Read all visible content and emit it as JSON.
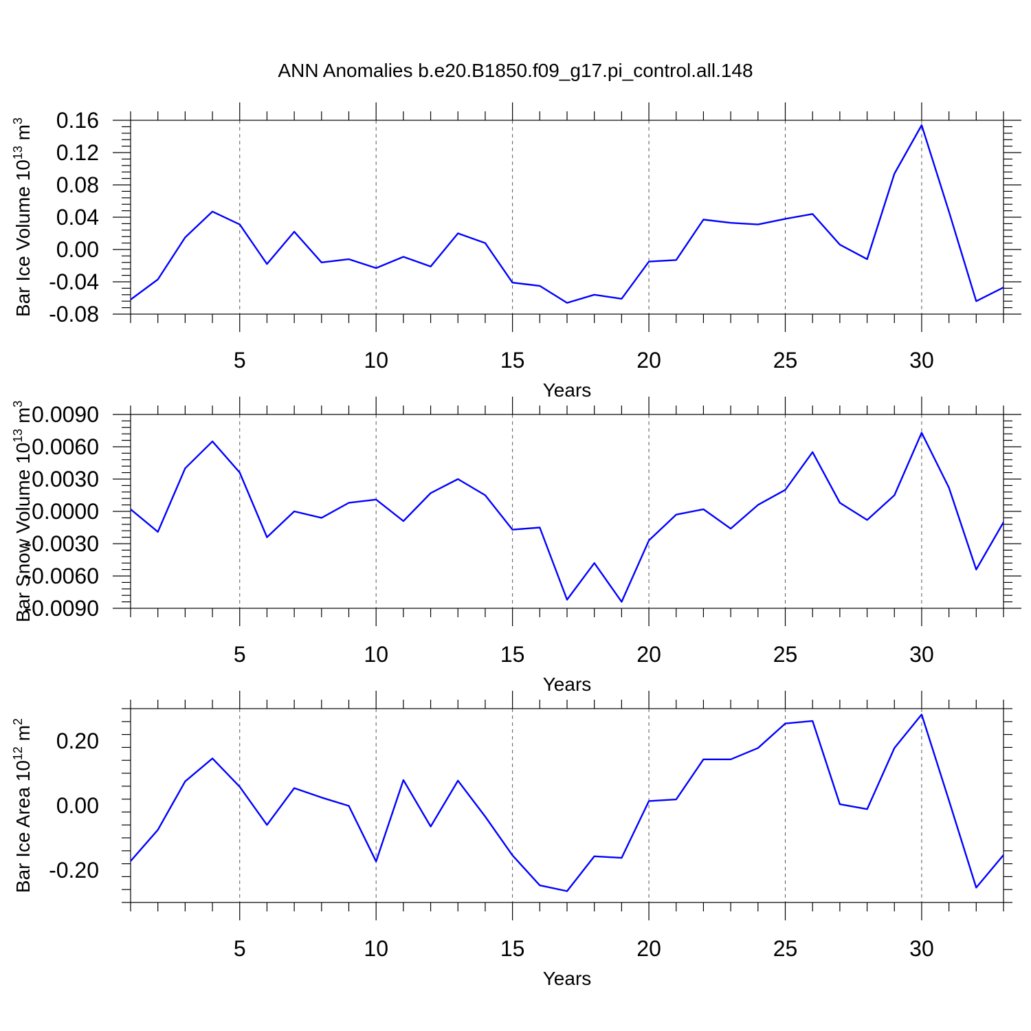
{
  "title": "ANN Anomalies b.e20.B1850.f09_g17.pi_control.all.148",
  "colors": {
    "line": "#0000ff",
    "axis": "#000000",
    "grid": "#555555"
  },
  "chart_data": [
    {
      "type": "line",
      "xlabel": "Years",
      "ylabel": "Bar Ice Volume 10",
      "ylabel_exp": "13",
      "ylabel_unit": " m",
      "ylabel_unit_exp": "3",
      "xlim": [
        1,
        33
      ],
      "ylim": [
        -0.08,
        0.16
      ],
      "xticks": [
        5,
        10,
        15,
        20,
        25,
        30
      ],
      "xtick_labels": [
        "5",
        "10",
        "15",
        "20",
        "25",
        "30"
      ],
      "yticks": [
        -0.08,
        -0.04,
        0.0,
        0.04,
        0.08,
        0.12,
        0.16
      ],
      "ytick_labels": [
        "-0.08",
        "-0.04",
        "0.00",
        "0.04",
        "0.08",
        "0.12",
        "0.16"
      ],
      "grid": "vertical dashed at major x ticks",
      "x": [
        1,
        2,
        3,
        4,
        5,
        6,
        7,
        8,
        9,
        10,
        11,
        12,
        13,
        14,
        15,
        16,
        17,
        18,
        19,
        20,
        21,
        22,
        23,
        24,
        25,
        26,
        27,
        28,
        29,
        30,
        31,
        32,
        33
      ],
      "series": [
        {
          "values": [
            -0.062,
            -0.037,
            0.015,
            0.047,
            0.031,
            -0.018,
            0.022,
            -0.016,
            -0.012,
            -0.023,
            -0.009,
            -0.021,
            0.02,
            0.008,
            -0.041,
            -0.045,
            -0.066,
            -0.056,
            -0.061,
            -0.015,
            -0.013,
            0.037,
            0.033,
            0.031,
            0.038,
            0.044,
            0.006,
            -0.012,
            0.094,
            0.154,
            0.047,
            -0.064,
            -0.047
          ]
        }
      ]
    },
    {
      "type": "line",
      "xlabel": "Years",
      "ylabel": "Bar Snow Volume 10",
      "ylabel_exp": "13",
      "ylabel_unit": " m",
      "ylabel_unit_exp": "3",
      "xlim": [
        1,
        33
      ],
      "ylim": [
        -0.009,
        0.009
      ],
      "xticks": [
        5,
        10,
        15,
        20,
        25,
        30
      ],
      "xtick_labels": [
        "5",
        "10",
        "15",
        "20",
        "25",
        "30"
      ],
      "yticks": [
        -0.009,
        -0.006,
        -0.003,
        0.0,
        0.003,
        0.006,
        0.009
      ],
      "ytick_labels": [
        "-0.0090",
        "-0.0060",
        "-0.0030",
        "0.0000",
        "0.0030",
        "0.0060",
        "0.0090"
      ],
      "grid": "vertical dashed at major x ticks",
      "x": [
        1,
        2,
        3,
        4,
        5,
        6,
        7,
        8,
        9,
        10,
        11,
        12,
        13,
        14,
        15,
        16,
        17,
        18,
        19,
        20,
        21,
        22,
        23,
        24,
        25,
        26,
        27,
        28,
        29,
        30,
        31,
        32,
        33
      ],
      "series": [
        {
          "values": [
            0.0002,
            -0.0019,
            0.004,
            0.0065,
            0.0036,
            -0.0024,
            0.0,
            -0.0006,
            0.0008,
            0.0011,
            -0.0009,
            0.0017,
            0.003,
            0.0015,
            -0.0017,
            -0.0015,
            -0.0082,
            -0.0048,
            -0.0084,
            -0.0027,
            -0.0003,
            0.0002,
            -0.0016,
            0.0006,
            0.002,
            0.0055,
            0.0008,
            -0.0008,
            0.0015,
            0.0073,
            0.0022,
            -0.0054,
            -0.001
          ]
        }
      ]
    },
    {
      "type": "line",
      "xlabel": "Years",
      "ylabel": "Bar Ice Area 10",
      "ylabel_exp": "12",
      "ylabel_unit": " m",
      "ylabel_unit_exp": "2",
      "xlim": [
        1,
        33
      ],
      "ylim": [
        -0.3,
        0.3
      ],
      "xticks": [
        5,
        10,
        15,
        20,
        25,
        30
      ],
      "xtick_labels": [
        "5",
        "10",
        "15",
        "20",
        "25",
        "30"
      ],
      "yticks": [
        -0.2,
        0.0,
        0.2
      ],
      "ytick_labels": [
        "-0.20",
        "0.00",
        "0.20"
      ],
      "grid": "vertical dashed at major x ticks",
      "x": [
        1,
        2,
        3,
        4,
        5,
        6,
        7,
        8,
        9,
        10,
        11,
        12,
        13,
        14,
        15,
        16,
        17,
        18,
        19,
        20,
        21,
        22,
        23,
        24,
        25,
        26,
        27,
        28,
        29,
        30,
        31,
        32,
        33
      ],
      "series": [
        {
          "values": [
            -0.172,
            -0.075,
            0.075,
            0.146,
            0.058,
            -0.06,
            0.054,
            0.025,
            -0.001,
            -0.173,
            0.079,
            -0.065,
            0.077,
            -0.034,
            -0.154,
            -0.247,
            -0.265,
            -0.157,
            -0.162,
            0.014,
            0.019,
            0.143,
            0.143,
            0.178,
            0.254,
            0.262,
            0.004,
            -0.011,
            0.178,
            0.282,
            0.016,
            -0.254,
            -0.153
          ]
        }
      ]
    }
  ]
}
